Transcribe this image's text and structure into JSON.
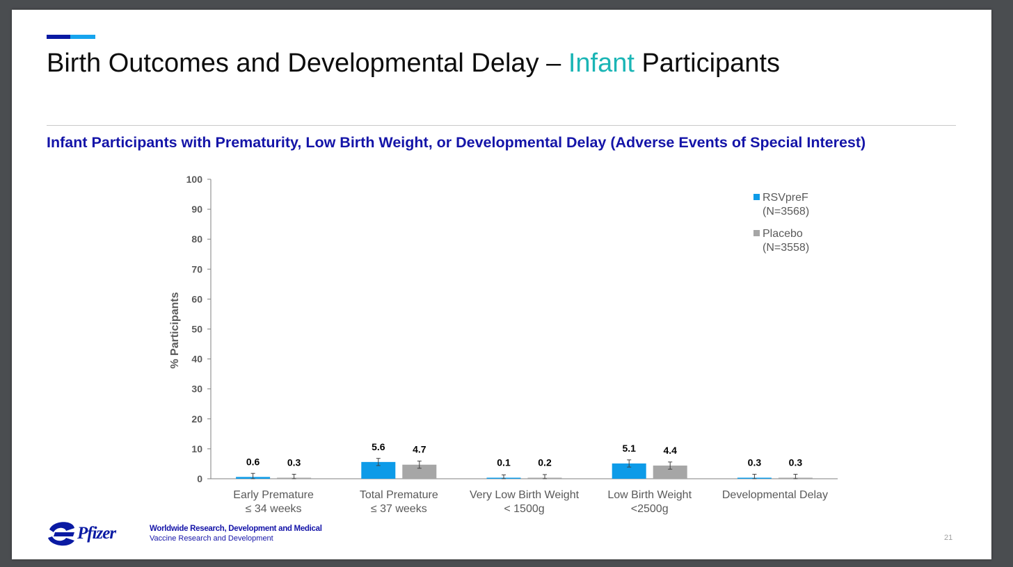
{
  "slide": {
    "title_before": "Birth Outcomes and Developmental Delay – ",
    "title_highlight": "Infant",
    "title_after": " Participants",
    "subtitle": "Infant Participants with Prematurity, Low Birth Weight, or Developmental Delay (Adverse Events of Special Interest)",
    "footer_org": "Worldwide Research, Development and Medical",
    "footer_dept": "Vaccine Research and Development",
    "page_number": "21",
    "logo_text": "Pfizer",
    "colors": {
      "title_highlight": "#1ab5b5",
      "subtitle": "#1414a8",
      "accent_dark": "#0a1aa3",
      "accent_light": "#16a4ee"
    }
  },
  "chart_data": {
    "type": "bar",
    "categories": [
      [
        "Early Premature",
        "≤ 34 weeks"
      ],
      [
        "Total Premature",
        "≤ 37 weeks"
      ],
      [
        "Very Low Birth Weight",
        "< 1500g"
      ],
      [
        "Low Birth Weight",
        "<2500g"
      ],
      [
        "Developmental Delay"
      ]
    ],
    "series": [
      {
        "name": [
          "RSVpreF",
          "(N=3568)"
        ],
        "color": "#0d9be8",
        "values": [
          0.6,
          5.6,
          0.1,
          5.1,
          0.3
        ],
        "labels": [
          "0.6",
          "5.6",
          "0.1",
          "5.1",
          "0.3"
        ]
      },
      {
        "name": [
          "Placebo",
          "(N=3558)"
        ],
        "color": "#a6a6a6",
        "values": [
          0.3,
          4.7,
          0.2,
          4.4,
          0.3
        ],
        "labels": [
          "0.3",
          "4.7",
          "0.2",
          "4.4",
          "0.3"
        ]
      }
    ],
    "error_bars": true,
    "ylabel": "% Participants",
    "xlabel": "",
    "ylim": [
      0,
      100
    ],
    "yticks": [
      0,
      10,
      20,
      30,
      40,
      50,
      60,
      70,
      80,
      90,
      100
    ],
    "legend_position": "top-right",
    "grid": false
  }
}
